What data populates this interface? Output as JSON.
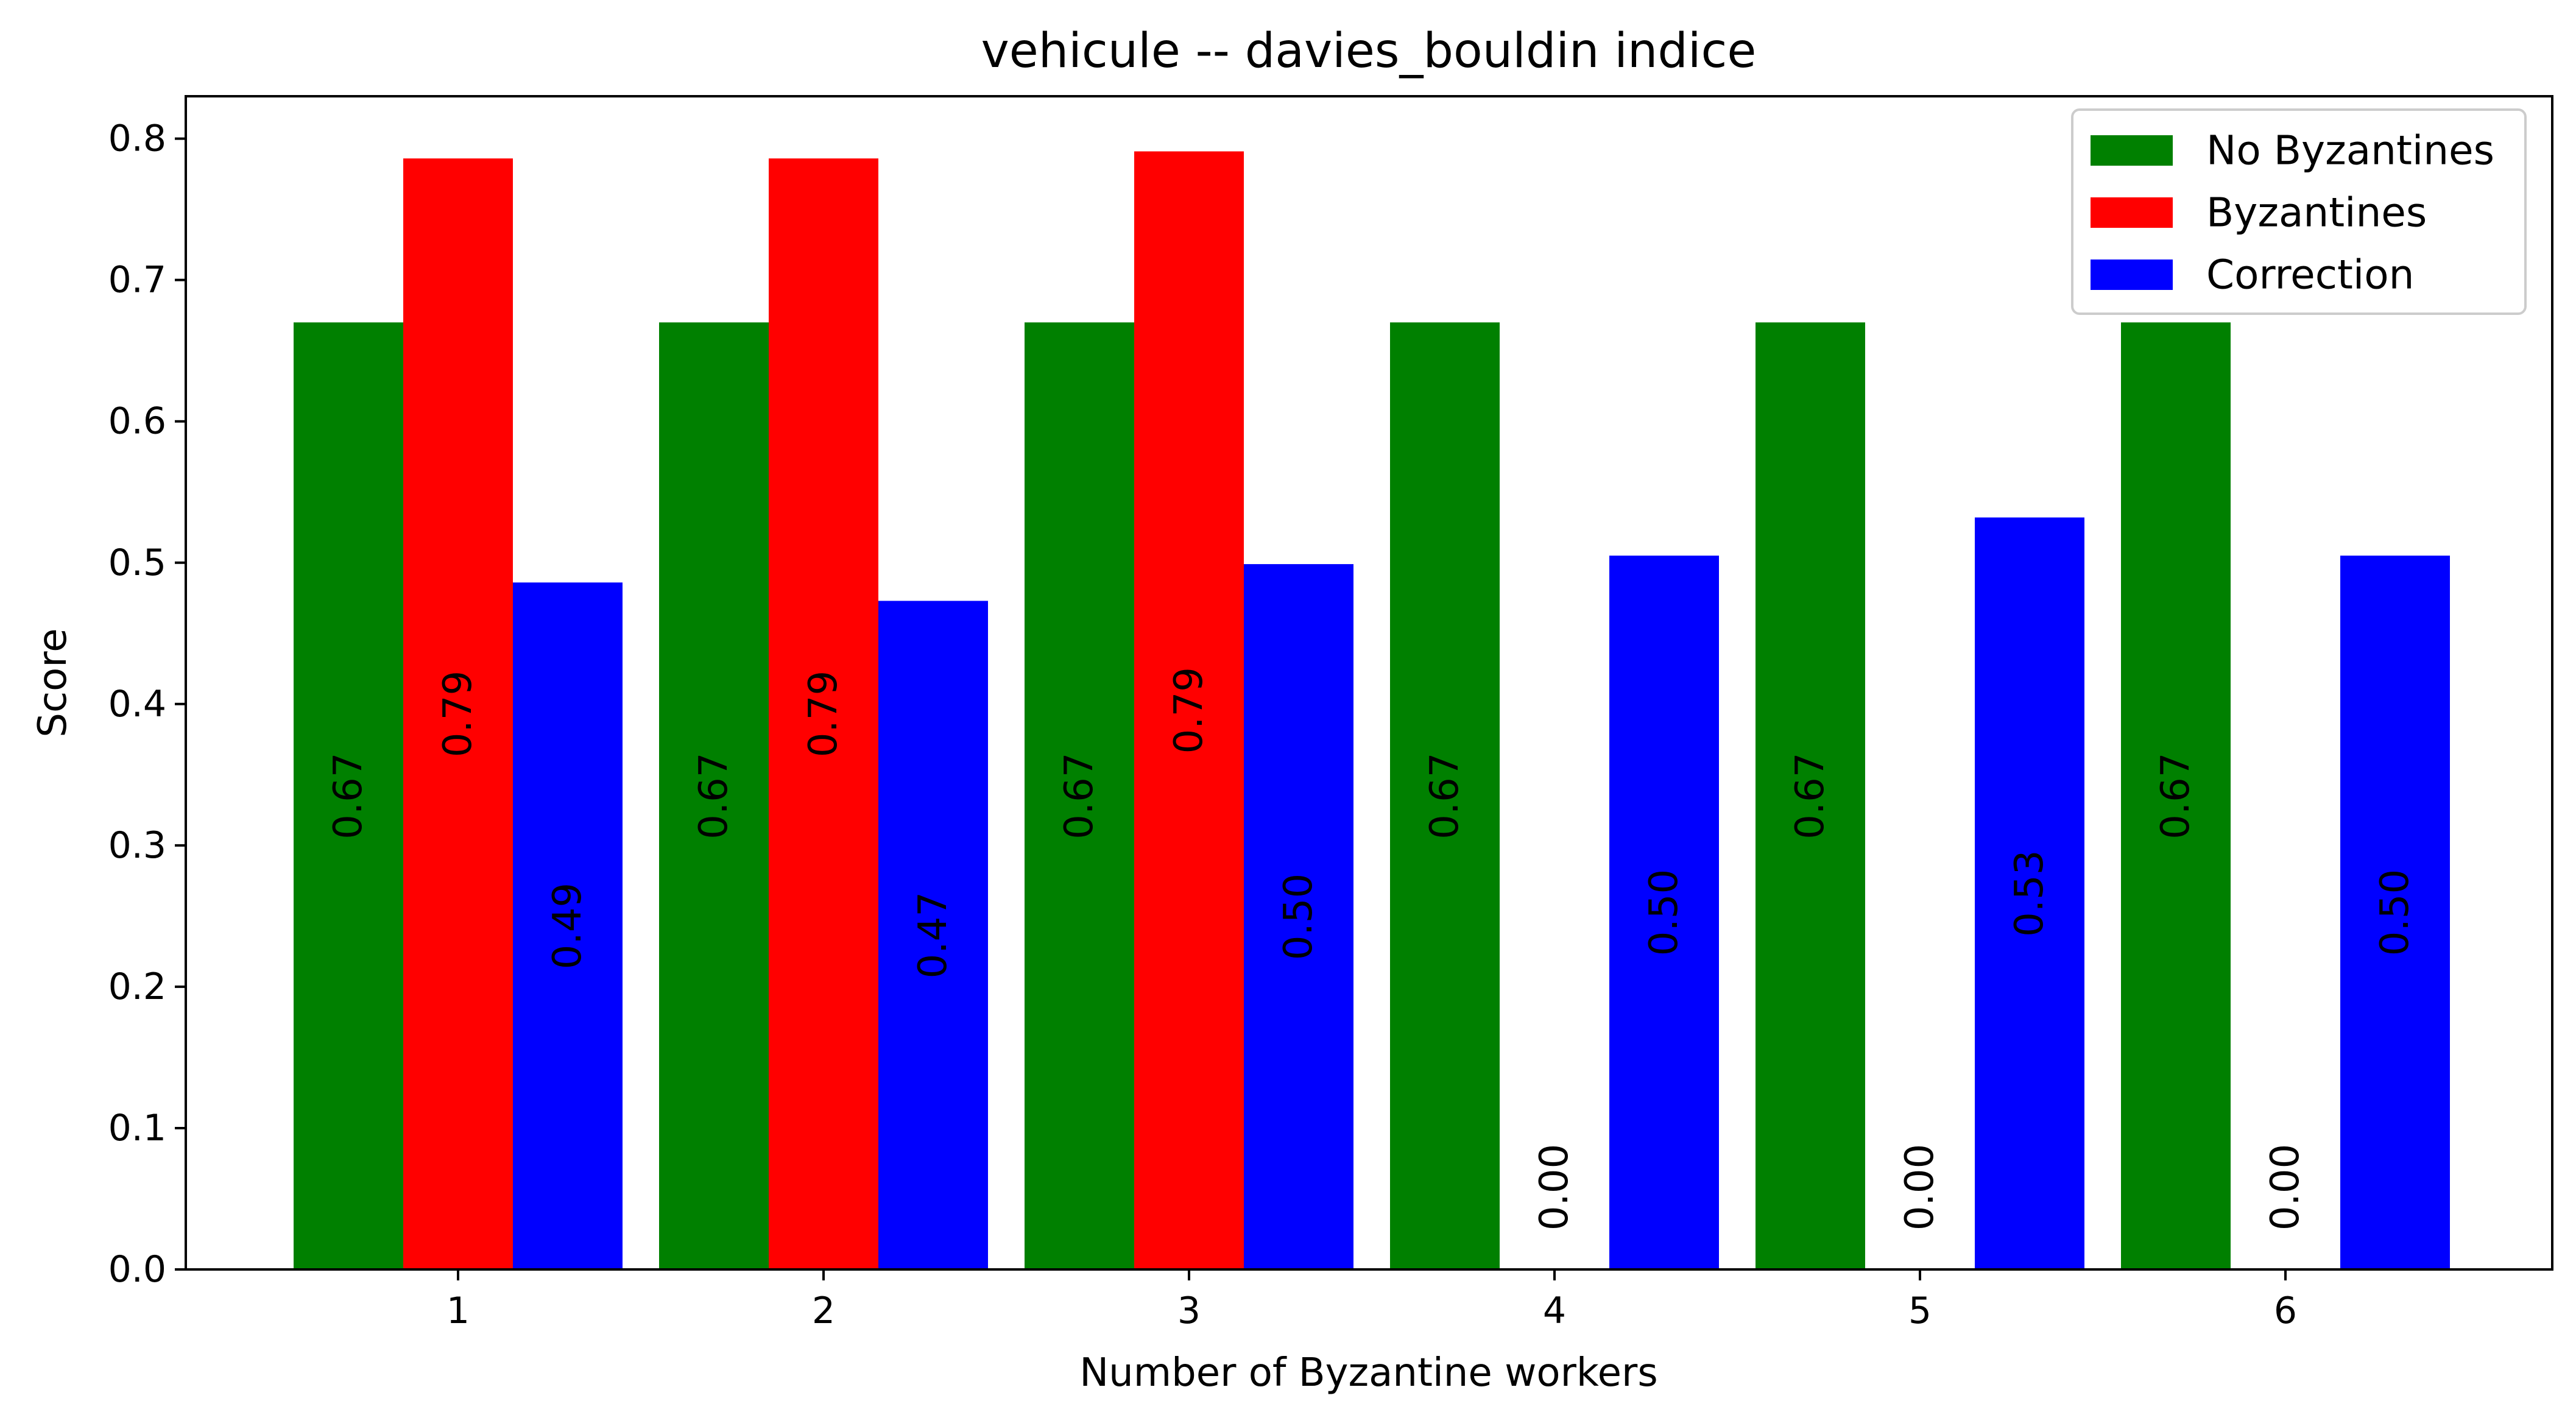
{
  "chart_data": {
    "type": "bar",
    "title": "vehicule -- davies_bouldin indice",
    "xlabel": "Number of Byzantine workers",
    "ylabel": "Score",
    "categories": [
      "1",
      "2",
      "3",
      "4",
      "5",
      "6"
    ],
    "ylim": [
      0,
      0.83
    ],
    "yticks": [
      "0.0",
      "0.1",
      "0.2",
      "0.3",
      "0.4",
      "0.5",
      "0.6",
      "0.7",
      "0.8"
    ],
    "grid": false,
    "legend_position": "top-right",
    "series": [
      {
        "name": "No Byzantines",
        "color": "#008000",
        "values": [
          0.67,
          0.67,
          0.67,
          0.67,
          0.67,
          0.67
        ],
        "labels": [
          "0.67",
          "0.67",
          "0.67",
          "0.67",
          "0.67",
          "0.67"
        ]
      },
      {
        "name": "Byzantines",
        "color": "#ff0000",
        "values": [
          0.786,
          0.786,
          0.791,
          0.0,
          0.0,
          0.0
        ],
        "labels": [
          "0.79",
          "0.79",
          "0.79",
          "0.00",
          "0.00",
          "0.00"
        ]
      },
      {
        "name": "Correction",
        "color": "#0000ff",
        "values": [
          0.486,
          0.473,
          0.499,
          0.505,
          0.532,
          0.505
        ],
        "labels": [
          "0.49",
          "0.47",
          "0.50",
          "0.50",
          "0.53",
          "0.50"
        ]
      }
    ]
  }
}
